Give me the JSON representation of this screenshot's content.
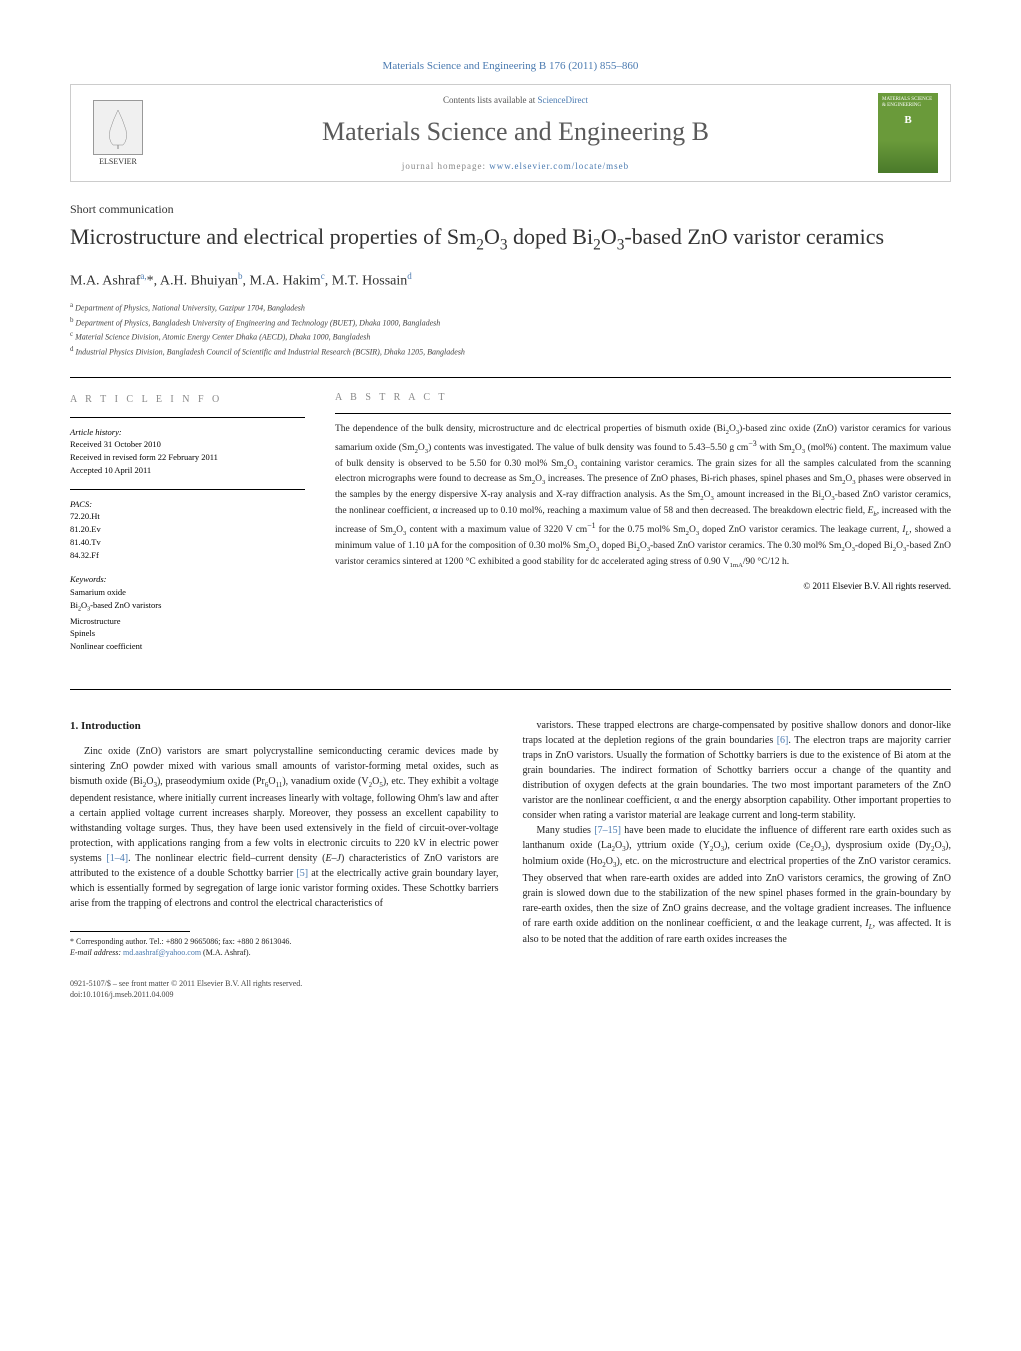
{
  "journal_header": "Materials Science and Engineering B 176 (2011) 855–860",
  "header": {
    "contents_prefix": "Contents lists available at ",
    "contents_link": "ScienceDirect",
    "journal_name": "Materials Science and Engineering B",
    "homepage_prefix": "journal homepage: ",
    "homepage_url": "www.elsevier.com/locate/mseb",
    "elsevier_label": "ELSEVIER",
    "cover_text": "MATERIALS SCIENCE & ENGINEERING"
  },
  "article": {
    "type": "Short communication",
    "title_html": "Microstructure and electrical properties of Sm<sub>2</sub>O<sub>3</sub> doped Bi<sub>2</sub>O<sub>3</sub>-based ZnO varistor ceramics",
    "authors_html": "M.A. Ashraf<sup>a,</sup>*, A.H. Bhuiyan<sup>b</sup>, M.A. Hakim<sup>c</sup>, M.T. Hossain<sup>d</sup>",
    "affiliations": [
      "Department of Physics, National University, Gazipur 1704, Bangladesh",
      "Department of Physics, Bangladesh University of Engineering and Technology (BUET), Dhaka 1000, Bangladesh",
      "Material Science Division, Atomic Energy Center Dhaka (AECD), Dhaka 1000, Bangladesh",
      "Industrial Physics Division, Bangladesh Council of Scientific and Industrial Research (BCSIR), Dhaka 1205, Bangladesh"
    ],
    "aff_markers": [
      "a",
      "b",
      "c",
      "d"
    ]
  },
  "meta": {
    "info_heading": "A R T I C L E   I N F O",
    "abstract_heading": "A B S T R A C T",
    "history_label": "Article history:",
    "history": [
      "Received 31 October 2010",
      "Received in revised form 22 February 2011",
      "Accepted 10 April 2011"
    ],
    "pacs_label": "PACS:",
    "pacs": [
      "72.20.Ht",
      "81.20.Ev",
      "81.40.Tv",
      "84.32.Ff"
    ],
    "keywords_label": "Keywords:",
    "keywords_html": [
      "Samarium oxide",
      "Bi<sub>2</sub>O<sub>3</sub>-based ZnO varistors",
      "Microstructure",
      "Spinels",
      "Nonlinear coefficient"
    ]
  },
  "abstract_html": "The dependence of the bulk density, microstructure and dc electrical properties of bismuth oxide (Bi<sub>2</sub>O<sub>3</sub>)-based zinc oxide (ZnO) varistor ceramics for various samarium oxide (Sm<sub>2</sub>O<sub>3</sub>) contents was investigated. The value of bulk density was found to 5.43–5.50 g cm<sup>−3</sup> with Sm<sub>2</sub>O<sub>3</sub> (mol%) content. The maximum value of bulk density is observed to be 5.50 for 0.30 mol% Sm<sub>2</sub>O<sub>3</sub> containing varistor ceramics. The grain sizes for all the samples calculated from the scanning electron micrographs were found to decrease as Sm<sub>2</sub>O<sub>3</sub> increases. The presence of ZnO phases, Bi-rich phases, spinel phases and Sm<sub>2</sub>O<sub>3</sub> phases were observed in the samples by the energy dispersive X-ray analysis and X-ray diffraction analysis. As the Sm<sub>2</sub>O<sub>3</sub> amount increased in the Bi<sub>2</sub>O<sub>3</sub>-based ZnO varistor ceramics, the nonlinear coefficient, α increased up to 0.10 mol%, reaching a maximum value of 58 and then decreased. The breakdown electric field, <i>E<sub>b</sub></i>, increased with the increase of Sm<sub>2</sub>O<sub>3</sub> content with a maximum value of 3220 V cm<sup>−1</sup> for the 0.75 mol% Sm<sub>2</sub>O<sub>3</sub> doped ZnO varistor ceramics. The leakage current, <i>I<sub>L</sub></i>, showed a minimum value of 1.10 µA for the composition of 0.30 mol% Sm<sub>2</sub>O<sub>3</sub> doped Bi<sub>2</sub>O<sub>3</sub>-based ZnO varistor ceramics. The 0.30 mol% Sm<sub>2</sub>O<sub>3</sub>-doped Bi<sub>2</sub>O<sub>3</sub>-based ZnO varistor ceramics sintered at 1200 °C exhibited a good stability for dc accelerated aging stress of 0.90 V<sub>1mA</sub>/90 °C/12 h.",
  "copyright": "© 2011 Elsevier B.V. All rights reserved.",
  "body": {
    "section_heading": "1. Introduction",
    "col1_para1_html": "Zinc oxide (ZnO) varistors are smart polycrystalline semiconducting ceramic devices made by sintering ZnO powder mixed with various small amounts of varistor-forming metal oxides, such as bismuth oxide (Bi<sub>2</sub>O<sub>3</sub>), praseodymium oxide (Pr<sub>6</sub>O<sub>11</sub>), vanadium oxide (V<sub>2</sub>O<sub>5</sub>), etc. They exhibit a voltage dependent resistance, where initially current increases linearly with voltage, following Ohm's law and after a certain applied voltage current increases sharply. Moreover, they possess an excellent capability to withstanding voltage surges. Thus, they have been used extensively in the field of circuit-over-voltage protection, with applications ranging from a few volts in electronic circuits to 220 kV in electric power systems <span class=\"ref-link\">[1–4]</span>. The nonlinear electric field–current density (<i>E–J</i>) characteristics of ZnO varistors are attributed to the existence of a double Schottky barrier <span class=\"ref-link\">[5]</span> at the electrically active grain boundary layer, which is essentially formed by segregation of large ionic varistor forming oxides. These Schottky barriers arise from the trapping of electrons and control the electrical characteristics of",
    "col2_para1_html": "varistors. These trapped electrons are charge-compensated by positive shallow donors and donor-like traps located at the depletion regions of the grain boundaries <span class=\"ref-link\">[6]</span>. The electron traps are majority carrier traps in ZnO varistors. Usually the formation of Schottky barriers is due to the existence of Bi atom at the grain boundaries. The indirect formation of Schottky barriers occur a change of the quantity and distribution of oxygen defects at the grain boundaries. The two most important parameters of the ZnO varistor are the nonlinear coefficient, α and the energy absorption capability. Other important properties to consider when rating a varistor material are leakage current and long-term stability.",
    "col2_para2_html": "Many studies <span class=\"ref-link\">[7–15]</span> have been made to elucidate the influence of different rare earth oxides such as lanthanum oxide (La<sub>2</sub>O<sub>3</sub>), yttrium oxide (Y<sub>2</sub>O<sub>3</sub>), cerium oxide (Ce<sub>2</sub>O<sub>3</sub>), dysprosium oxide (Dy<sub>2</sub>O<sub>3</sub>), holmium oxide (Ho<sub>2</sub>O<sub>3</sub>), etc. on the microstructure and electrical properties of the ZnO varistor ceramics. They observed that when rare-earth oxides are added into ZnO varistors ceramics, the growing of ZnO grain is slowed down due to the stabilization of the new spinel phases formed in the grain-boundary by rare-earth oxides, then the size of ZnO grains decrease, and the voltage gradient increases. The influence of rare earth oxide addition on the nonlinear coefficient, α and the leakage current, <i>I<sub>L</sub></i>, was affected. It is also to be noted that the addition of rare earth oxides increases the"
  },
  "footnote": {
    "corresponding": "* Corresponding author. Tel.: +880 2 9665086; fax: +880 2 8613046.",
    "email_label": "E-mail address: ",
    "email": "md.aashraf@yahoo.com",
    "email_suffix": " (M.A. Ashraf)."
  },
  "footer": {
    "line1": "0921-5107/$ – see front matter © 2011 Elsevier B.V. All rights reserved.",
    "line2": "doi:10.1016/j.mseb.2011.04.009"
  },
  "colors": {
    "link": "#4a7ab0",
    "text": "#222222",
    "heading_gray": "#888888",
    "cover_green": "#6a9a3a"
  }
}
